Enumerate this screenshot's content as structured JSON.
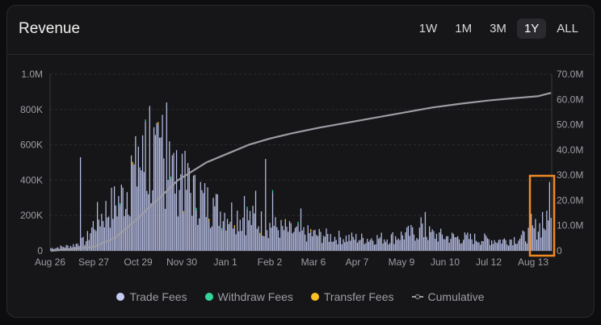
{
  "header": {
    "title": "Revenue",
    "ranges": [
      "1W",
      "1M",
      "3M",
      "1Y",
      "ALL"
    ],
    "active_range": "1Y"
  },
  "legend": {
    "items": [
      {
        "label": "Trade Fees",
        "color": "#c3cbf4"
      },
      {
        "label": "Withdraw Fees",
        "color": "#34d399"
      },
      {
        "label": "Transfer Fees",
        "color": "#fbbf24"
      },
      {
        "label": "Cumulative",
        "color": "#9c9ca4"
      }
    ]
  },
  "colors": {
    "highlight": "#f08a24",
    "cumulative": "#9c9ca4",
    "grid": "#2c2c30",
    "axis_text": "#9c9ca4"
  },
  "chart_data": {
    "type": "bar",
    "x_tick_labels": [
      "Aug 26",
      "Sep 27",
      "Oct 29",
      "Nov 30",
      "Jan 1",
      "Feb 2",
      "Mar 6",
      "Apr 7",
      "May 9",
      "Jun 10",
      "Jul 12",
      "Aug 13"
    ],
    "y_left_ticks": [
      "0",
      "200K",
      "400K",
      "600K",
      "800K",
      "1.0M"
    ],
    "y_right_ticks": [
      "0",
      "10.0M",
      "20.0M",
      "30.0M",
      "40.0M",
      "50.0M",
      "60.0M",
      "70.0M"
    ],
    "ylim_left": [
      0,
      1000000
    ],
    "ylim_right": [
      0,
      70000000
    ],
    "highlight_range": [
      "Aug 13",
      "Aug 26"
    ],
    "series": [
      {
        "name": "Trade Fees",
        "axis": "left",
        "knots": [
          {
            "day": 0,
            "value": 15000
          },
          {
            "day": 15,
            "value": 30000
          },
          {
            "day": 25,
            "value": 60000
          },
          {
            "day": 32,
            "value": 180000
          },
          {
            "day": 40,
            "value": 230000
          },
          {
            "day": 50,
            "value": 300000
          },
          {
            "day": 58,
            "value": 420000
          },
          {
            "day": 64,
            "value": 500000
          },
          {
            "day": 70,
            "value": 450000
          },
          {
            "day": 78,
            "value": 520000
          },
          {
            "day": 84,
            "value": 480000
          },
          {
            "day": 95,
            "value": 380000
          },
          {
            "day": 105,
            "value": 300000
          },
          {
            "day": 120,
            "value": 230000
          },
          {
            "day": 135,
            "value": 200000
          },
          {
            "day": 150,
            "value": 160000
          },
          {
            "day": 165,
            "value": 120000
          },
          {
            "day": 180,
            "value": 100000
          },
          {
            "day": 200,
            "value": 80000
          },
          {
            "day": 220,
            "value": 70000
          },
          {
            "day": 240,
            "value": 75000
          },
          {
            "day": 260,
            "value": 110000
          },
          {
            "day": 280,
            "value": 80000
          },
          {
            "day": 300,
            "value": 70000
          },
          {
            "day": 320,
            "value": 60000
          },
          {
            "day": 335,
            "value": 80000
          },
          {
            "day": 345,
            "value": 140000
          },
          {
            "day": 352,
            "value": 160000
          }
        ],
        "peaks": [
          {
            "day": 21,
            "value": 530000
          },
          {
            "day": 57,
            "value": 540000
          },
          {
            "day": 62,
            "value": 590000
          },
          {
            "day": 67,
            "value": 730000
          },
          {
            "day": 70,
            "value": 820000
          },
          {
            "day": 73,
            "value": 700000
          },
          {
            "day": 77,
            "value": 640000
          },
          {
            "day": 79,
            "value": 770000
          },
          {
            "day": 82,
            "value": 840000
          },
          {
            "day": 84,
            "value": 620000
          },
          {
            "day": 89,
            "value": 570000
          },
          {
            "day": 93,
            "value": 550000
          },
          {
            "day": 98,
            "value": 470000
          },
          {
            "day": 102,
            "value": 430000
          },
          {
            "day": 106,
            "value": 390000
          },
          {
            "day": 115,
            "value": 300000
          },
          {
            "day": 137,
            "value": 310000
          },
          {
            "day": 145,
            "value": 340000
          },
          {
            "day": 152,
            "value": 520000
          },
          {
            "day": 157,
            "value": 330000
          },
          {
            "day": 177,
            "value": 240000
          },
          {
            "day": 265,
            "value": 220000
          },
          {
            "day": 262,
            "value": 190000
          },
          {
            "day": 340,
            "value": 210000
          },
          {
            "day": 348,
            "value": 220000
          },
          {
            "day": 353,
            "value": 390000
          }
        ]
      },
      {
        "name": "Withdraw Fees",
        "axis": "left",
        "approx_value": 2000
      },
      {
        "name": "Transfer Fees",
        "axis": "left",
        "approx_value": 1000
      },
      {
        "name": "Cumulative",
        "axis": "right",
        "type": "line",
        "points": [
          {
            "day": 0,
            "value": 0
          },
          {
            "day": 30,
            "value": 1500000
          },
          {
            "day": 45,
            "value": 5000000
          },
          {
            "day": 60,
            "value": 12000000
          },
          {
            "day": 75,
            "value": 20000000
          },
          {
            "day": 90,
            "value": 28000000
          },
          {
            "day": 110,
            "value": 35000000
          },
          {
            "day": 125,
            "value": 38500000
          },
          {
            "day": 140,
            "value": 42000000
          },
          {
            "day": 155,
            "value": 44500000
          },
          {
            "day": 170,
            "value": 46500000
          },
          {
            "day": 190,
            "value": 48800000
          },
          {
            "day": 210,
            "value": 50800000
          },
          {
            "day": 230,
            "value": 52800000
          },
          {
            "day": 250,
            "value": 54800000
          },
          {
            "day": 270,
            "value": 56800000
          },
          {
            "day": 290,
            "value": 58300000
          },
          {
            "day": 310,
            "value": 59600000
          },
          {
            "day": 330,
            "value": 60600000
          },
          {
            "day": 345,
            "value": 61300000
          },
          {
            "day": 354,
            "value": 62600000
          }
        ]
      }
    ]
  }
}
